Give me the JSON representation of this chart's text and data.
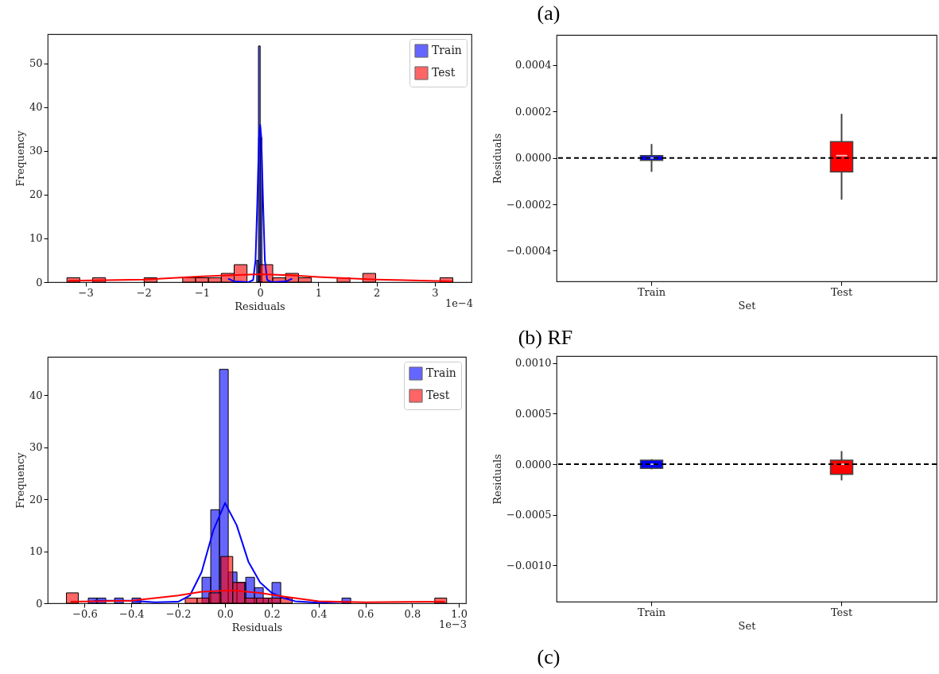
{
  "chart_data": [
    {
      "type": "histogram",
      "xlabel": "Residuals",
      "ylabel": "Frequency",
      "annotations": [
        "1e−4"
      ],
      "legend": "top right",
      "xlim": [
        -3.65,
        3.63
      ],
      "ylim": [
        0,
        56.7
      ],
      "xticks": [
        {
          "value": -3,
          "label": "−3"
        },
        {
          "value": -2,
          "label": "−2"
        },
        {
          "value": -1,
          "label": "−1"
        },
        0,
        1,
        2,
        3
      ],
      "yticks": [
        0,
        10,
        20,
        30,
        40,
        50
      ],
      "series": [
        {
          "name": "Train",
          "color": "#0000ff",
          "bins": [
            -0.51,
            -0.48,
            -0.45,
            -0.42,
            -0.39,
            -0.36,
            -0.33,
            -0.3,
            -0.27,
            -0.24,
            -0.21,
            -0.18,
            -0.15,
            -0.12,
            -0.09,
            -0.06,
            -0.03,
            0,
            0.03,
            0.06,
            0.09,
            0.12,
            0.15,
            0.18,
            0.21,
            0.24,
            0.27,
            0.3,
            0.33,
            0.36,
            0.39,
            0.42,
            0.45,
            0.48,
            0.51
          ],
          "values": [
            0,
            0,
            0,
            0,
            0,
            0,
            0,
            0,
            0,
            0,
            0,
            0,
            0,
            0,
            0,
            5,
            54,
            33,
            0,
            0,
            0,
            0,
            0,
            0,
            0,
            0,
            0,
            0,
            0,
            0,
            0,
            0,
            0,
            0
          ]
        },
        {
          "name": "Test",
          "color": "#ff0000",
          "bins": [
            -3.32,
            -3.099,
            -2.878,
            -2.657,
            -2.436,
            -2.215,
            -1.994,
            -1.773,
            -1.552,
            -1.331,
            -1.11,
            -0.889,
            -0.668,
            -0.447,
            -0.226,
            -0.005,
            0.216,
            0.437,
            0.658,
            0.879,
            1.1,
            1.321,
            1.542,
            1.763,
            1.984,
            2.205,
            2.426,
            2.647,
            2.868,
            3.089,
            3.31
          ],
          "values": [
            1,
            0,
            1,
            0,
            0,
            0,
            1,
            0,
            0,
            1,
            1,
            1,
            2,
            4,
            0,
            4,
            1,
            2,
            1,
            0,
            0,
            1,
            0,
            2,
            0,
            0,
            0,
            0,
            0,
            1
          ]
        },
        {
          "type": "line",
          "color": "#0000ff",
          "x": [
            -0.55,
            -0.45,
            -0.2,
            -0.12,
            -0.08,
            -0.05,
            -0.02,
            0,
            0.02,
            0.05,
            0.08,
            0.12,
            0.2,
            0.45,
            0.55
          ],
          "values": [
            0.8,
            0.2,
            0,
            0.5,
            5,
            18,
            33,
            36,
            33,
            18,
            5,
            0.5,
            0,
            0.2,
            0.8
          ]
        },
        {
          "type": "line",
          "color": "#ff0000",
          "x": [
            -3.3,
            -2,
            -1,
            -0.3,
            0,
            0.5,
            1,
            2,
            3.3
          ],
          "values": [
            0.3,
            0.6,
            1.3,
            1.7,
            1.8,
            1.6,
            1.2,
            0.6,
            0.2
          ]
        }
      ]
    },
    {
      "type": "box",
      "xlabel": "Set",
      "ylabel": "Residuals",
      "categories": [
        "Train",
        "Test"
      ],
      "colors": [
        "#0000ff",
        "#ff0000"
      ],
      "ylim": [
        -0.000532,
        0.00053
      ],
      "yticks": [
        {
          "value": -0.0004,
          "label": "−0.0004"
        },
        {
          "value": -0.0002,
          "label": "−0.0002"
        },
        {
          "value": 0,
          "label": "0.0000"
        },
        {
          "value": 0.0002,
          "label": "0.0002"
        },
        {
          "value": 0.0004,
          "label": "0.0004"
        }
      ],
      "annotations": [
        "(a)"
      ],
      "boxes": [
        {
          "low": -6e-05,
          "q1": -1e-05,
          "median": 0,
          "q3": 1e-05,
          "high": 6e-05
        },
        {
          "low": -0.00018,
          "q1": -6e-05,
          "median": 1e-05,
          "q3": 7e-05,
          "high": 0.00019
        }
      ],
      "ref_lines": [
        {
          "axis": "y",
          "value": 0,
          "color": "#000000",
          "line_style": "dashed"
        }
      ]
    },
    {
      "type": "histogram",
      "xlabel": "Residuals",
      "ylabel": "Frequency",
      "annotations": [
        "1e−3"
      ],
      "legend": "top right",
      "xlim": [
        -0.758,
        1.03
      ],
      "ylim": [
        0,
        47.4
      ],
      "xticks": [
        {
          "value": -0.6,
          "label": "−0.6"
        },
        {
          "value": -0.4,
          "label": "−0.4"
        },
        {
          "value": -0.2,
          "label": "−0.2"
        },
        {
          "value": 0,
          "label": "0.0"
        },
        0.2,
        0.4,
        0.6,
        0.8,
        {
          "value": 1,
          "label": "1.0"
        }
      ],
      "yticks": [
        0,
        10,
        20,
        30,
        40
      ],
      "series": [
        {
          "name": "Train",
          "color": "#0000ff",
          "bins": [
            -0.5845,
            -0.5471,
            -0.5097,
            -0.4723,
            -0.4349,
            -0.3975,
            -0.3601,
            -0.3227,
            -0.2853,
            -0.2479,
            -0.2105,
            -0.1731,
            -0.1357,
            -0.0983,
            -0.0609,
            -0.0235,
            0.0139,
            0.0513,
            0.0887,
            0.1261,
            0.1635,
            0.2009,
            0.2383,
            0.2757,
            0.3131,
            0.3505,
            0.3879,
            0.4253,
            0.4627,
            0.5001,
            0.5375
          ],
          "values": [
            1,
            1,
            0,
            1,
            0,
            1,
            0,
            0,
            0,
            0,
            0,
            0,
            0,
            5,
            18,
            45,
            6,
            4,
            5,
            3,
            1,
            4,
            0,
            0,
            0,
            0,
            0,
            0,
            0,
            1
          ]
        },
        {
          "name": "Test",
          "color": "#ff0000",
          "bins": [
            -0.678,
            -0.6272,
            -0.5764,
            -0.5256,
            -0.4748,
            -0.424,
            -0.3732,
            -0.3224,
            -0.2716,
            -0.2208,
            -0.17,
            -0.1192,
            -0.0684,
            -0.0176,
            0.0332,
            0.084,
            0.1348,
            0.1856,
            0.2364,
            0.2872,
            0.338,
            0.3888,
            0.4396,
            0.4904,
            0.5412,
            0.592,
            0.6428,
            0.6936,
            0.7444,
            0.7952,
            0.846,
            0.8968,
            0.9476
          ],
          "values": [
            2,
            0,
            0,
            0,
            0,
            0,
            0,
            0,
            0,
            0,
            1,
            1,
            2,
            9,
            4,
            1,
            1,
            1,
            1,
            0,
            0,
            0,
            0,
            0,
            0,
            0,
            0,
            0,
            0,
            0,
            0,
            1
          ]
        },
        {
          "type": "line",
          "color": "#0000ff",
          "x": [
            -0.56,
            -0.4,
            -0.3,
            -0.2,
            -0.15,
            -0.1,
            -0.05,
            0,
            0.05,
            0.1,
            0.15,
            0.2,
            0.25,
            0.3,
            0.4,
            0.53
          ],
          "values": [
            0.5,
            0.5,
            0.2,
            0.3,
            1.5,
            6,
            14,
            19.3,
            15,
            8,
            4,
            2,
            1,
            0.4,
            0.1,
            0.3
          ]
        },
        {
          "type": "line",
          "color": "#ff0000",
          "x": [
            -0.66,
            -0.4,
            -0.2,
            -0.1,
            0.03,
            0.15,
            0.25,
            0.4,
            0.6,
            0.94
          ],
          "values": [
            0.3,
            0.5,
            1.5,
            2.2,
            2.5,
            2,
            1.3,
            0.4,
            0.2,
            0.3
          ]
        }
      ]
    },
    {
      "type": "box",
      "xlabel": "Set",
      "ylabel": "Residuals",
      "categories": [
        "Train",
        "Test"
      ],
      "colors": [
        "#0000ff",
        "#ff0000"
      ],
      "ylim": [
        -0.00136,
        0.00107
      ],
      "yticks": [
        {
          "value": -0.001,
          "label": "−0.0010"
        },
        {
          "value": -0.0005,
          "label": "−0.0005"
        },
        {
          "value": 0,
          "label": "0.0000"
        },
        {
          "value": 0.0005,
          "label": "0.0005"
        },
        {
          "value": 0.001,
          "label": "0.0010"
        }
      ],
      "annotations": [
        "(b) RF",
        "(c)"
      ],
      "boxes": [
        {
          "low": -5e-05,
          "q1": -4e-05,
          "median": 0,
          "q3": 4e-05,
          "high": 5e-05
        },
        {
          "low": -0.00016,
          "q1": -0.0001,
          "median": 0,
          "q3": 4e-05,
          "high": 0.00013
        }
      ],
      "ref_lines": [
        {
          "axis": "y",
          "value": 0,
          "color": "#000000",
          "line_style": "dashed"
        }
      ]
    }
  ]
}
